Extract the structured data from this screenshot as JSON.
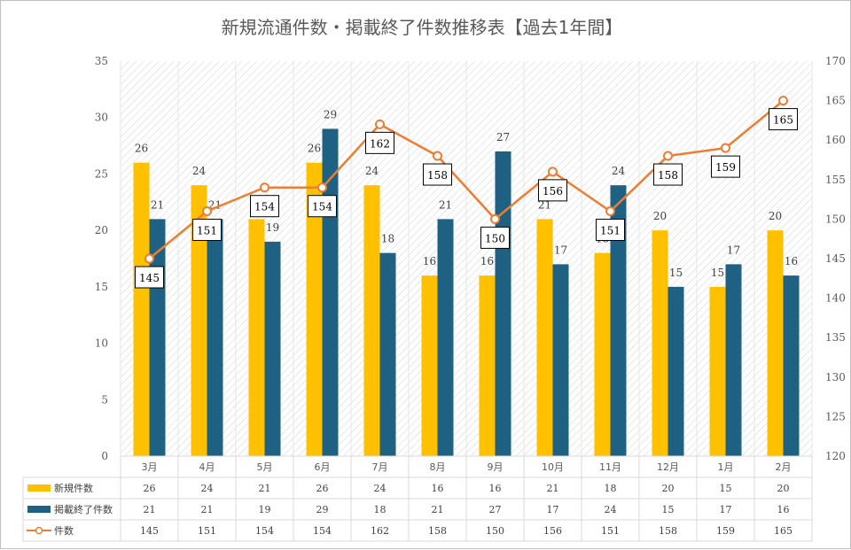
{
  "chart_data": {
    "type": "bar",
    "title": "新規流通件数・掲載終了件数推移表【過去1年間】",
    "categories": [
      "3月",
      "4月",
      "5月",
      "6月",
      "7月",
      "8月",
      "9月",
      "10月",
      "11月",
      "12月",
      "1月",
      "2月"
    ],
    "series": [
      {
        "name": "新規件数",
        "type": "bar",
        "axis": "left",
        "color": "#FFC000",
        "values": [
          26,
          24,
          21,
          26,
          24,
          16,
          16,
          21,
          18,
          20,
          15,
          20
        ]
      },
      {
        "name": "掲載終了件数",
        "type": "bar",
        "axis": "left",
        "color": "#1F6182",
        "values": [
          21,
          21,
          19,
          29,
          18,
          21,
          27,
          17,
          24,
          15,
          17,
          16
        ]
      },
      {
        "name": "件数",
        "type": "line",
        "axis": "right",
        "color": "#ED7D31",
        "values": [
          145,
          151,
          154,
          154,
          162,
          158,
          150,
          156,
          151,
          158,
          159,
          165
        ]
      }
    ],
    "y_left": {
      "min": 0,
      "max": 35,
      "step": 5,
      "ticks": [
        "0",
        "5",
        "10",
        "15",
        "20",
        "25",
        "30",
        "35"
      ]
    },
    "y_right": {
      "min": 120,
      "max": 170,
      "step": 5,
      "ticks": [
        "120",
        "125",
        "130",
        "135",
        "140",
        "145",
        "150",
        "155",
        "160",
        "165",
        "170"
      ]
    },
    "data_table": true,
    "legend": "data-table"
  }
}
